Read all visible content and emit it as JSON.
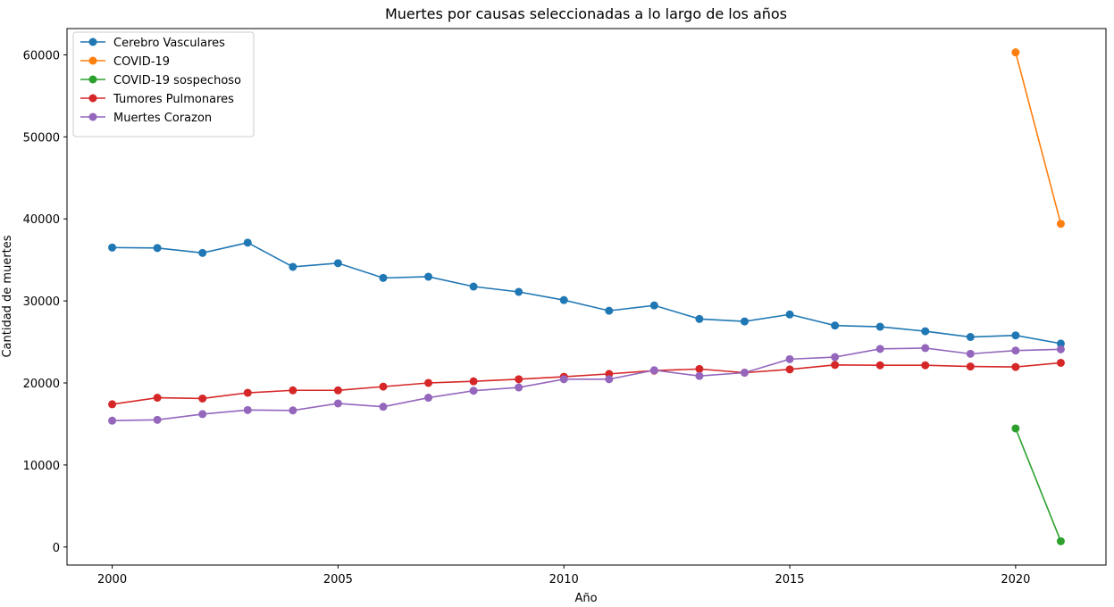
{
  "chart_data": {
    "type": "line",
    "title": "Muertes por causas seleccionadas a lo largo de los años",
    "xlabel": "Año",
    "ylabel": "Cantidad de muertes",
    "xlim": [
      1999,
      2022
    ],
    "ylim": [
      -2200,
      63200
    ],
    "xticks": [
      2000,
      2005,
      2010,
      2015,
      2020
    ],
    "yticks": [
      0,
      10000,
      20000,
      30000,
      40000,
      50000,
      60000
    ],
    "grid": false,
    "legend_position": "upper-left",
    "series": [
      {
        "name": "Cerebro Vasculares",
        "color": "#1f77b4",
        "x": [
          2000,
          2001,
          2002,
          2003,
          2004,
          2005,
          2006,
          2007,
          2008,
          2009,
          2010,
          2011,
          2012,
          2013,
          2014,
          2015,
          2016,
          2017,
          2018,
          2019,
          2020,
          2021
        ],
        "values": [
          36500,
          36450,
          35850,
          37100,
          34150,
          34600,
          32800,
          32950,
          31750,
          31100,
          30100,
          28800,
          29450,
          27800,
          27500,
          28350,
          27000,
          26850,
          26300,
          25600,
          25800,
          24800
        ]
      },
      {
        "name": "COVID-19",
        "color": "#ff7f0e",
        "x": [
          2020,
          2021
        ],
        "values": [
          60300,
          39400
        ]
      },
      {
        "name": "COVID-19 sospechoso",
        "color": "#2ca02c",
        "x": [
          2020,
          2021
        ],
        "values": [
          14450,
          700
        ]
      },
      {
        "name": "Tumores Pulmonares",
        "color": "#d62728",
        "x": [
          2000,
          2001,
          2002,
          2003,
          2004,
          2005,
          2006,
          2007,
          2008,
          2009,
          2010,
          2011,
          2012,
          2013,
          2014,
          2015,
          2016,
          2017,
          2018,
          2019,
          2020,
          2021
        ],
        "values": [
          17400,
          18200,
          18100,
          18800,
          19100,
          19100,
          19550,
          20000,
          20200,
          20450,
          20750,
          21100,
          21500,
          21700,
          21250,
          21650,
          22200,
          22150,
          22150,
          22000,
          21950,
          22450
        ]
      },
      {
        "name": "Muertes Corazon",
        "color": "#9467bd",
        "x": [
          2000,
          2001,
          2002,
          2003,
          2004,
          2005,
          2006,
          2007,
          2008,
          2009,
          2010,
          2011,
          2012,
          2013,
          2014,
          2015,
          2016,
          2017,
          2018,
          2019,
          2020,
          2021
        ],
        "values": [
          15400,
          15500,
          16200,
          16700,
          16650,
          17500,
          17100,
          18200,
          19050,
          19450,
          20450,
          20450,
          21550,
          20850,
          21250,
          22900,
          23150,
          24150,
          24250,
          23550,
          23950,
          24100
        ]
      }
    ]
  }
}
